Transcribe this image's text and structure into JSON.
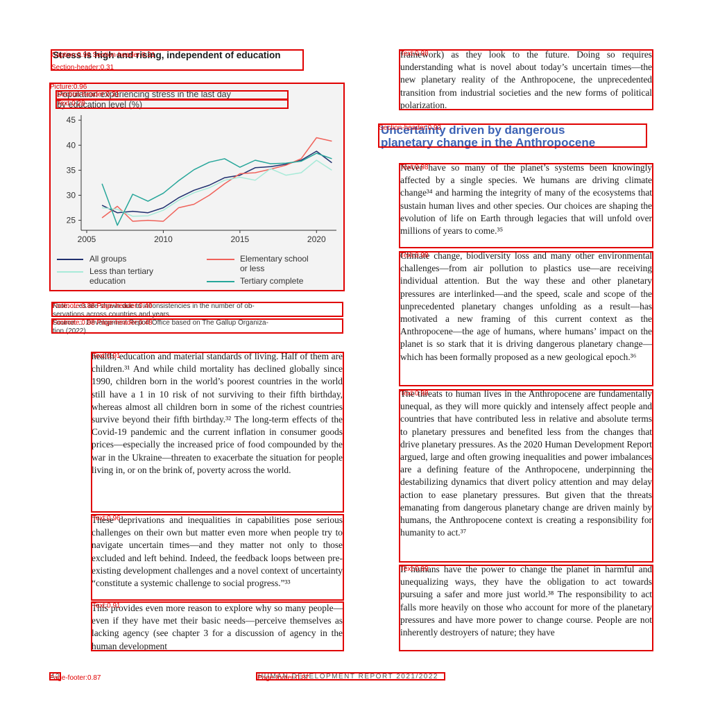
{
  "figure": {
    "title": "Stress is high and rising, independent of education",
    "subtitle_line1": "Population experiencing stress in the last day",
    "subtitle_line2": "by education level (%)",
    "note_line1": "Note: ... es are shown due to inconsistencies in the number of ob-",
    "note_line2": "servations across countries and years.",
    "source_line1": "Source: ... Development Report Office based on The Gallup Organiza-",
    "source_line2": "tion (2022)."
  },
  "chart_data": {
    "type": "line",
    "x": [
      2006,
      2007,
      2008,
      2009,
      2010,
      2011,
      2012,
      2013,
      2014,
      2015,
      2016,
      2017,
      2018,
      2019,
      2020,
      2021
    ],
    "xticks": [
      2005,
      2010,
      2015,
      2020
    ],
    "yticks": [
      25,
      30,
      35,
      40,
      45
    ],
    "xlim": [
      2005,
      2021.3
    ],
    "ylim": [
      23,
      46
    ],
    "legend_position": "bottom",
    "series": [
      {
        "name": "All groups",
        "color": "#1f2f6e",
        "values": [
          28.0,
          26.5,
          26.8,
          26.5,
          27.5,
          29.5,
          31.0,
          32.0,
          33.5,
          34.0,
          35.5,
          35.7,
          36.2,
          37.0,
          38.8,
          36.5
        ]
      },
      {
        "name": "Elementary school or less",
        "color": "#f0625a",
        "values": [
          25.5,
          27.8,
          24.8,
          25.0,
          24.8,
          27.5,
          28.2,
          30.0,
          32.3,
          34.3,
          34.5,
          35.2,
          36.0,
          37.3,
          41.5,
          40.8
        ]
      },
      {
        "name": "Less than tertiary education",
        "color": "#a7ead8",
        "values": [
          27.5,
          27.2,
          25.8,
          25.9,
          27.0,
          29.0,
          30.5,
          31.5,
          33.0,
          33.6,
          33.0,
          35.3,
          34.0,
          34.5,
          37.0,
          35.0
        ]
      },
      {
        "name": "Tertiary complete",
        "color": "#26a69a",
        "values": [
          32.3,
          24.0,
          30.2,
          28.8,
          30.4,
          32.9,
          35.1,
          36.6,
          37.3,
          35.6,
          37.0,
          36.3,
          36.4,
          36.8,
          38.4,
          37.3
        ]
      }
    ]
  },
  "legend": {
    "all": "All groups",
    "elementary": "Elementary school",
    "elementary2": "or less",
    "lessTertiary": "Less than tertiary",
    "lessTertiary2": "education",
    "tertiary": "Tertiary complete"
  },
  "left_col": {
    "p1": "health, education and material standards of living. Half of them are children.³¹ And while child mortality has declined globally since 1990, children born in the world’s poorest countries in the world still have a 1 in 10 risk of not surviving to their fifth birthday, whereas almost all children born in some of the richest countries survive beyond their fifth birthday.³² The long-term effects of the Covid-19 pandemic and the current inflation in consumer goods prices—especially the increased price of food compounded by the war in the Ukraine—threaten to exacerbate the situation for people living in, or on the brink of, poverty across the world.",
    "p2": "These deprivations and inequalities in capabilities pose serious challenges on their own but matter even more when people try to navigate uncertain times—and they matter not only to those excluded and left behind. Indeed, the feedback loops between pre-existing development challenges and a novel context of uncertainty “constitute a systemic challenge to social progress.”³³",
    "p3": "This provides even more reason to explore why so many people—even if they have met their basic needs—perceive themselves as lacking agency (see chapter 3 for a discussion of agency in the human development"
  },
  "right_col": {
    "p0": "framework) as they look to the future. Doing so requires understanding what is novel about today’s uncertain times—the new planetary reality of the Anthropocene, the unprecedented transition from industrial societies and the new forms of political polarization.",
    "section_title_line1": "Uncertainty driven by dangerous",
    "section_title_line2": "planetary change in the Anthropocene",
    "p1": "Never have so many of the planet’s systems been knowingly affected by a single species. We humans are driving climate change³⁴ and harming the integrity of many of the ecosystems that sustain human lives and other species. Our choices are shaping the evolution of life on Earth through legacies that will unfold over millions of years to come.³⁵",
    "p2": "Climate change, biodiversity loss and many other environmental challenges—from air pollution to plastics use—are receiving individual attention. But the way these and other planetary pressures are interlinked—and the speed, scale and scope of the unprecedented planetary changes unfolding as a result—has motivated a new framing of this current context as the Anthropocene—the age of humans, where humans’ impact on the planet is so stark that it is driving dangerous planetary change—which has been formally proposed as a new geological epoch.³⁶",
    "p3": "The threats to human lives in the Anthropocene are fundamentally unequal, as they will more quickly and intensely affect people and countries that have contributed less in relative and absolute terms to planetary pressures and benefited less from the changes that drive planetary pressures. As the 2020 Human Development Report argued, large and often growing inequalities and power imbalances are a defining feature of the Anthropocene, underpinning the destabilizing dynamics that divert policy attention and may delay action to ease planetary pressures. But given that the threats emanating from dangerous planetary change are driven mainly by humans, the Anthropocene context is creating a responsibility for humanity to act.³⁷",
    "p4": "If humans have the power to change the planet in harmful and unequalizing ways, they have the obligation to act towards pursuing a safer and more just world.³⁸ The responsibility to act falls more heavily on those who account for more of the planetary pressures and have more power to change course. People are not inherently destroyers of nature; they have"
  },
  "footer": {
    "page_number": "42",
    "report": "HUMAN DEVELOPMENT REPORT 2021/2022"
  },
  "detections": {
    "caption_title": "Caption:0.96 Section-header:0.31",
    "caption_title2": "Section-header:0.31",
    "picture": "Picture:0.96",
    "sub1": "Section-header:0.31",
    "sub2": "Text:0.28",
    "note": "Footnote:0.88 Page-header:0.49",
    "source": "Footnote:0.88 Page-header:0.48",
    "lt1": "Text:0.91",
    "lt2": "Text:0.96",
    "lt3": "Text:0.91",
    "rt0": "Text:0.98",
    "sh": "Section-header:0.93",
    "rt1": "Text:0.98",
    "rt2": "Text:0.98",
    "rt3": "Text:0.98",
    "rt4": "Text:0.99",
    "pf1": "Page-footer:0.87",
    "pf2": "Page-footer:0.87"
  }
}
